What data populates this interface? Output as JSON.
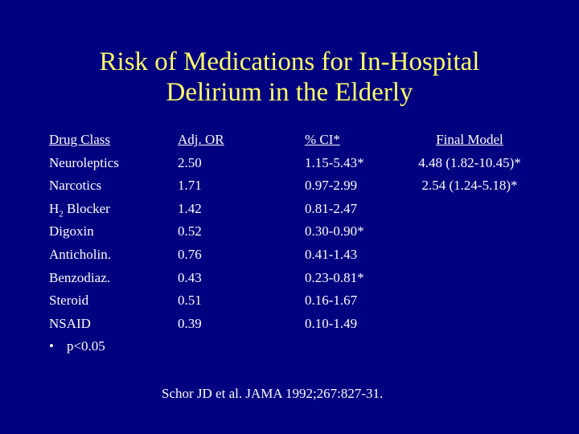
{
  "title": {
    "line1": "Risk of Medications for In-Hospital",
    "line2": "Delirium in the  Elderly"
  },
  "table": {
    "headers": {
      "drug_class": "Drug Class",
      "adj_or": "Adj. OR",
      "ci": "% CI*",
      "final_model": "Final Model"
    },
    "rows": [
      {
        "drug": "Neuroleptics",
        "or": "2.50",
        "ci": "1.15-5.43*",
        "final": "4.48 (1.82-10.45)*"
      },
      {
        "drug": "Narcotics",
        "or": "1.71",
        "ci": "0.97-2.99",
        "final": "2.54 (1.24-5.18)*"
      },
      {
        "drug_main": "H",
        "drug_sub": "2",
        "drug_rest": " Blocker",
        "or": "1.42",
        "ci": "0.81-2.47"
      },
      {
        "drug": "Digoxin",
        "or": "0.52",
        "ci": "0.30-0.90*"
      },
      {
        "drug": "Anticholin.",
        "or": "0.76",
        "ci": "0.41-1.43"
      },
      {
        "drug": "Benzodiaz.",
        "or": "0.43",
        "ci": "0.23-0.81*"
      },
      {
        "drug": "Steroid",
        "or": "0.51",
        "ci": "0.16-1.67"
      },
      {
        "drug": "NSAID",
        "or": "0.39",
        "ci": "0.10-1.49"
      }
    ],
    "footnote": {
      "bullet": "•",
      "text": "p<0.05"
    }
  },
  "citation": "Schor JD et al.  JAMA 1992;267:827-31."
}
